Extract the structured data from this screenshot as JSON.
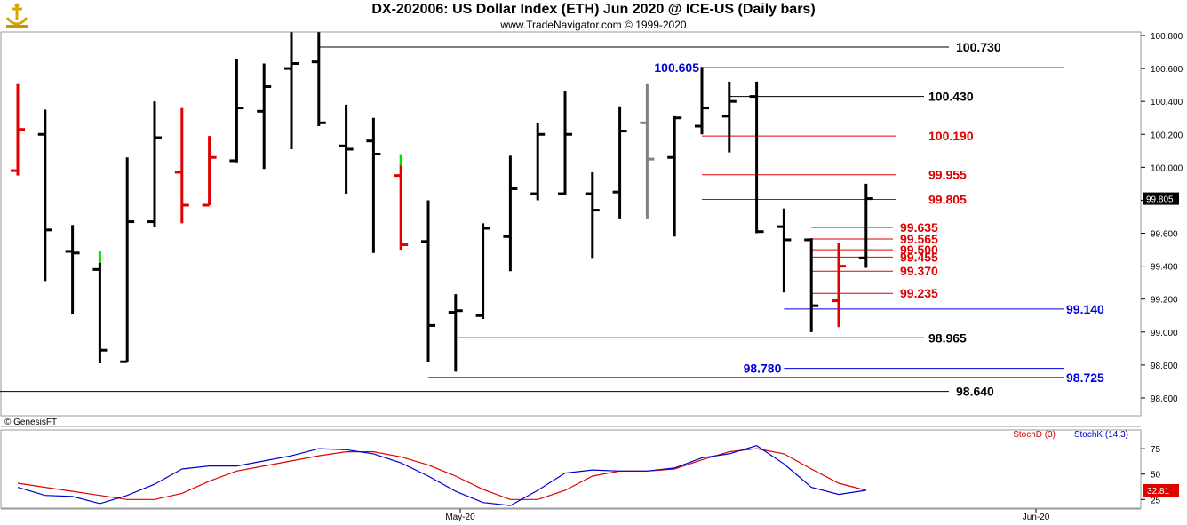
{
  "header": {
    "title": "DX-202006:  US Dollar Index (ETH) Jun 2020 @ ICE-US  (Daily bars)",
    "subtitle": "www.TradeNavigator.com © 1999-2020",
    "logo_icon": "anchor-trophy-icon"
  },
  "footer": {
    "copyright": "© GenesisFT"
  },
  "colors": {
    "up": "#000000",
    "down": "#e00000",
    "gray": "#808080",
    "green": "#00dd00",
    "blue_level": "#0000dd",
    "red_level": "#e00000",
    "black_level": "#000000",
    "stoch_d": "#e00000",
    "stoch_k": "#0000cc"
  },
  "chart_data": [
    {
      "type": "ohlc",
      "title": "DX-202006:  US Dollar Index (ETH) Jun 2020 @ ICE-US  (Daily bars)",
      "ylim": [
        98.6,
        100.8
      ],
      "y_ticks": [
        "100.800",
        "100.600",
        "100.400",
        "100.200",
        "100.000",
        "99.800",
        "99.600",
        "99.400",
        "99.200",
        "99.000",
        "98.800",
        "98.600"
      ],
      "x_tick_labels": [
        "May-20",
        "Jun-20"
      ],
      "last_price_label": "99.805",
      "bars": [
        {
          "open": 99.98,
          "high": 100.51,
          "low": 99.95,
          "close": 100.23,
          "color": "red"
        },
        {
          "open": 100.2,
          "high": 100.35,
          "low": 99.31,
          "close": 99.62,
          "color": "black"
        },
        {
          "open": 99.49,
          "high": 99.65,
          "low": 99.11,
          "close": 99.48,
          "color": "black"
        },
        {
          "open": 99.38,
          "high": 99.49,
          "low": 98.81,
          "close": 98.89,
          "color": "black",
          "high_tick_color": "green"
        },
        {
          "open": 98.82,
          "high": 100.06,
          "low": 98.82,
          "close": 99.67,
          "color": "black"
        },
        {
          "open": 99.67,
          "high": 100.4,
          "low": 99.64,
          "close": 100.18,
          "color": "black"
        },
        {
          "open": 99.97,
          "high": 100.36,
          "low": 99.66,
          "close": 99.77,
          "color": "red"
        },
        {
          "open": 99.77,
          "high": 100.19,
          "low": 99.77,
          "close": 100.06,
          "color": "red"
        },
        {
          "open": 100.04,
          "high": 100.66,
          "low": 100.03,
          "close": 100.36,
          "color": "black"
        },
        {
          "open": 100.34,
          "high": 100.63,
          "low": 99.99,
          "close": 100.49,
          "color": "black"
        },
        {
          "open": 100.6,
          "high": 100.82,
          "low": 100.11,
          "close": 100.63,
          "color": "black"
        },
        {
          "open": 100.64,
          "high": 100.82,
          "low": 100.25,
          "close": 100.27,
          "color": "black"
        },
        {
          "open": 100.13,
          "high": 100.38,
          "low": 99.84,
          "close": 100.11,
          "color": "black"
        },
        {
          "open": 100.16,
          "high": 100.3,
          "low": 99.48,
          "close": 100.08,
          "color": "black"
        },
        {
          "open": 99.95,
          "high": 100.08,
          "low": 99.5,
          "close": 99.53,
          "color": "red",
          "high_tick_color": "green"
        },
        {
          "open": 99.55,
          "high": 99.8,
          "low": 98.82,
          "close": 99.04,
          "color": "black"
        },
        {
          "open": 99.12,
          "high": 99.23,
          "low": 98.76,
          "close": 99.13,
          "color": "black"
        },
        {
          "open": 99.1,
          "high": 99.66,
          "low": 99.08,
          "close": 99.63,
          "color": "black"
        },
        {
          "open": 99.58,
          "high": 100.07,
          "low": 99.37,
          "close": 99.87,
          "color": "black"
        },
        {
          "open": 99.84,
          "high": 100.27,
          "low": 99.8,
          "close": 100.2,
          "color": "black"
        },
        {
          "open": 99.84,
          "high": 100.46,
          "low": 99.83,
          "close": 100.2,
          "color": "black"
        },
        {
          "open": 99.84,
          "high": 99.97,
          "low": 99.45,
          "close": 99.74,
          "color": "black"
        },
        {
          "open": 99.85,
          "high": 100.37,
          "low": 99.69,
          "close": 100.22,
          "color": "black"
        },
        {
          "open": 100.27,
          "high": 100.51,
          "low": 99.69,
          "close": 100.05,
          "color": "gray"
        },
        {
          "open": 100.06,
          "high": 100.31,
          "low": 99.58,
          "close": 100.3,
          "color": "black"
        },
        {
          "open": 100.25,
          "high": 100.61,
          "low": 100.2,
          "close": 100.36,
          "color": "black"
        },
        {
          "open": 100.31,
          "high": 100.52,
          "low": 100.09,
          "close": 100.4,
          "color": "black"
        },
        {
          "open": 100.43,
          "high": 100.52,
          "low": 99.6,
          "close": 99.61,
          "color": "black"
        },
        {
          "open": 99.64,
          "high": 99.75,
          "low": 99.24,
          "close": 99.56,
          "color": "black"
        },
        {
          "open": 99.56,
          "high": 99.57,
          "low": 99.0,
          "close": 99.16,
          "color": "black"
        },
        {
          "open": 99.19,
          "high": 99.54,
          "low": 99.03,
          "close": 99.4,
          "color": "red"
        },
        {
          "open": 99.45,
          "high": 99.9,
          "low": 99.39,
          "close": 99.81,
          "color": "black"
        }
      ],
      "levels": [
        {
          "label": "100.730",
          "value": 100.73,
          "color": "black",
          "x_from_bar": 11
        },
        {
          "label": "100.605",
          "value": 100.605,
          "color": "blue",
          "x_from_bar": 25,
          "label_side": "left"
        },
        {
          "label": "100.430",
          "value": 100.43,
          "color": "black",
          "x_from_bar": 26
        },
        {
          "label": "100.190",
          "value": 100.19,
          "color": "red",
          "x_from_bar": 25
        },
        {
          "label": "99.955",
          "value": 99.955,
          "color": "red",
          "x_from_bar": 25
        },
        {
          "label": "99.805",
          "value": 99.805,
          "color": "red",
          "x_from_bar": 25
        },
        {
          "label": "99.635",
          "value": 99.635,
          "color": "red",
          "x_from_bar": 29
        },
        {
          "label": "99.565",
          "value": 99.565,
          "color": "red",
          "x_from_bar": 29
        },
        {
          "label": "99.500",
          "value": 99.5,
          "color": "red",
          "x_from_bar": 29
        },
        {
          "label": "99.455",
          "value": 99.455,
          "color": "red",
          "x_from_bar": 29
        },
        {
          "label": "99.370",
          "value": 99.37,
          "color": "red",
          "x_from_bar": 29
        },
        {
          "label": "99.235",
          "value": 99.235,
          "color": "red",
          "x_from_bar": 29
        },
        {
          "label": "99.140",
          "value": 99.14,
          "color": "blue",
          "x_from_bar": 28,
          "label_side": "far"
        },
        {
          "label": "98.965",
          "value": 98.965,
          "color": "black",
          "x_from_bar": 16
        },
        {
          "label": "98.780",
          "value": 98.78,
          "color": "blue",
          "x_from_bar": 28,
          "label_side": "left"
        },
        {
          "label": "98.725",
          "value": 98.725,
          "color": "blue",
          "x_from_bar": 15,
          "label_side": "far"
        },
        {
          "label": "98.640",
          "value": 98.64,
          "color": "black",
          "x_from_bar": 0,
          "label_side": "mid"
        }
      ]
    },
    {
      "type": "line",
      "ylim": [
        20,
        90
      ],
      "y_ticks": [
        "75",
        "50",
        "25"
      ],
      "last_value_label": "32.81",
      "series": [
        {
          "name": "StochD (3)",
          "color": "red",
          "values": [
            41,
            37,
            33,
            29,
            25,
            25,
            31,
            43,
            53,
            58,
            63,
            68,
            72,
            72,
            67,
            59,
            48,
            35,
            25,
            25,
            34,
            48,
            53,
            53,
            55,
            64,
            72,
            75,
            70,
            55,
            41,
            34
          ]
        },
        {
          "name": "StochK (14,3)",
          "color": "blue",
          "values": [
            37,
            29,
            28,
            21,
            29,
            40,
            55,
            58,
            58,
            63,
            68,
            75,
            74,
            70,
            61,
            48,
            33,
            22,
            19,
            34,
            51,
            54,
            53,
            53,
            56,
            66,
            70,
            78,
            60,
            37,
            30,
            34
          ]
        }
      ]
    }
  ]
}
